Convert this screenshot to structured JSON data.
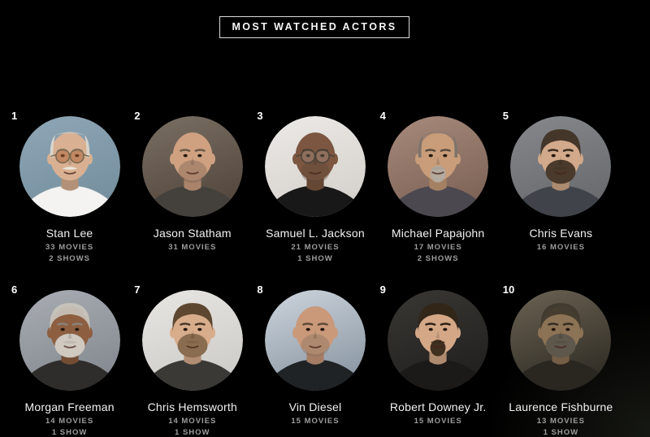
{
  "header": {
    "title": "MOST WATCHED ACTORS"
  },
  "colors": {
    "background": "#000000",
    "title_text": "#f7f7f7",
    "title_border": "#dcdcdc",
    "rank_text": "#ffffff",
    "name_text": "#f2f2f2",
    "stats_text": "#9c9c9c"
  },
  "actors": [
    {
      "rank": "1",
      "name": "Stan Lee",
      "stats": [
        "33 MOVIES",
        "2 SHOWS"
      ],
      "photo": {
        "bg": "#8fa6b6",
        "bg2": "#76909f",
        "skin": "#d9b192",
        "hair": "#d8d4cc",
        "hair_style": "receding",
        "brow": "#9a8f80",
        "mustache": "#ece7dd",
        "beard": null,
        "beard_style": null,
        "shirt": "#f4f3f1",
        "glasses": {
          "frame": "#7a6a52",
          "tint": "rgba(170,96,52,0.5)"
        }
      }
    },
    {
      "rank": "2",
      "name": "Jason Statham",
      "stats": [
        "31 MOVIES"
      ],
      "photo": {
        "bg": "#7a6f63",
        "bg2": "#55493f",
        "skin": "#cfa181",
        "hair": null,
        "hair_style": "bald",
        "brow": "#6b5a48",
        "mustache": null,
        "beard": "#7b6453",
        "beard_style": "stubble",
        "shirt": "#44413c",
        "glasses": null
      }
    },
    {
      "rank": "3",
      "name": "Samuel L. Jackson",
      "stats": [
        "21 MOVIES",
        "1 SHOW"
      ],
      "photo": {
        "bg": "#eceae7",
        "bg2": "#d6d2cd",
        "skin": "#7c5640",
        "hair": null,
        "hair_style": "bald",
        "brow": "#3c2b20",
        "mustache": null,
        "beard": "#5c473a",
        "beard_style": "stubble",
        "shirt": "#181818",
        "glasses": {
          "frame": "#4a4238",
          "tint": "rgba(255,255,255,0.15)"
        }
      }
    },
    {
      "rank": "4",
      "name": "Michael Papajohn",
      "stats": [
        "17 MOVIES",
        "2 SHOWS"
      ],
      "photo": {
        "bg": "#a78a7c",
        "bg2": "#7e6457",
        "skin": "#c99d79",
        "hair": "#7d746c",
        "hair_style": "receding",
        "brow": "#5a4c40",
        "mustache": "#aaa198",
        "beard": "#b3aaa0",
        "beard_style": "goatee",
        "shirt": "#4c4850",
        "glasses": null
      }
    },
    {
      "rank": "5",
      "name": "Chris Evans",
      "stats": [
        "16 MOVIES"
      ],
      "photo": {
        "bg": "#86888c",
        "bg2": "#696b6f",
        "skin": "#d2a98a",
        "hair": "#45362a",
        "hair_style": "short",
        "brow": "#3a2d22",
        "mustache": null,
        "beard": "#4a3a2c",
        "beard_style": "full",
        "shirt": "#40434a",
        "glasses": null
      }
    },
    {
      "rank": "6",
      "name": "Morgan Freeman",
      "stats": [
        "14 MOVIES",
        "1 SHOW"
      ],
      "photo": {
        "bg": "#a9adb3",
        "bg2": "#868b92",
        "skin": "#8d5f40",
        "hair": "#c9c4bc",
        "hair_style": "buzz",
        "brow": "#8a8278",
        "mustache": null,
        "beard": "#cfc9c0",
        "beard_style": "full",
        "shirt": "#2e2d2b",
        "glasses": null
      }
    },
    {
      "rank": "7",
      "name": "Chris Hemsworth",
      "stats": [
        "14 MOVIES",
        "1 SHOW"
      ],
      "photo": {
        "bg": "#e8e6e3",
        "bg2": "#cfcdc9",
        "skin": "#d8ad8c",
        "hair": "#5d4730",
        "hair_style": "short",
        "brow": "#4a3828",
        "mustache": null,
        "beard": "#8a6d50",
        "beard_style": "full",
        "shirt": "#3a3936",
        "glasses": null
      }
    },
    {
      "rank": "8",
      "name": "Vin Diesel",
      "stats": [
        "15 MOVIES"
      ],
      "photo": {
        "bg": "#cdd5dd",
        "bg2": "#8e9aa6",
        "skin": "#c9997a",
        "hair": null,
        "hair_style": "bald",
        "brow": "#5f4a38",
        "mustache": null,
        "beard": "#8a7260",
        "beard_style": "stubble",
        "shirt": "#202326",
        "glasses": null
      }
    },
    {
      "rank": "9",
      "name": "Robert Downey Jr.",
      "stats": [
        "15 MOVIES"
      ],
      "photo": {
        "bg": "#3a3833",
        "bg2": "#232120",
        "skin": "#d4a887",
        "hair": "#322619",
        "hair_style": "short",
        "brow": "#2c2115",
        "mustache": "#3a2c1d",
        "beard": "#40301f",
        "beard_style": "goatee",
        "shirt": "#1c1a18",
        "glasses": null
      }
    },
    {
      "rank": "10",
      "name": "Laurence Fishburne",
      "stats": [
        "13 MOVIES",
        "1 SHOW"
      ],
      "photo": {
        "bg": "#6b6353",
        "bg2": "#332f27",
        "skin": "#8d7355",
        "hair": "#3f382d",
        "hair_style": "buzz",
        "brow": "#332c22",
        "mustache": null,
        "beard": "#5e574c",
        "beard_style": "full",
        "shirt": "#2a2620",
        "glasses": null
      }
    }
  ]
}
